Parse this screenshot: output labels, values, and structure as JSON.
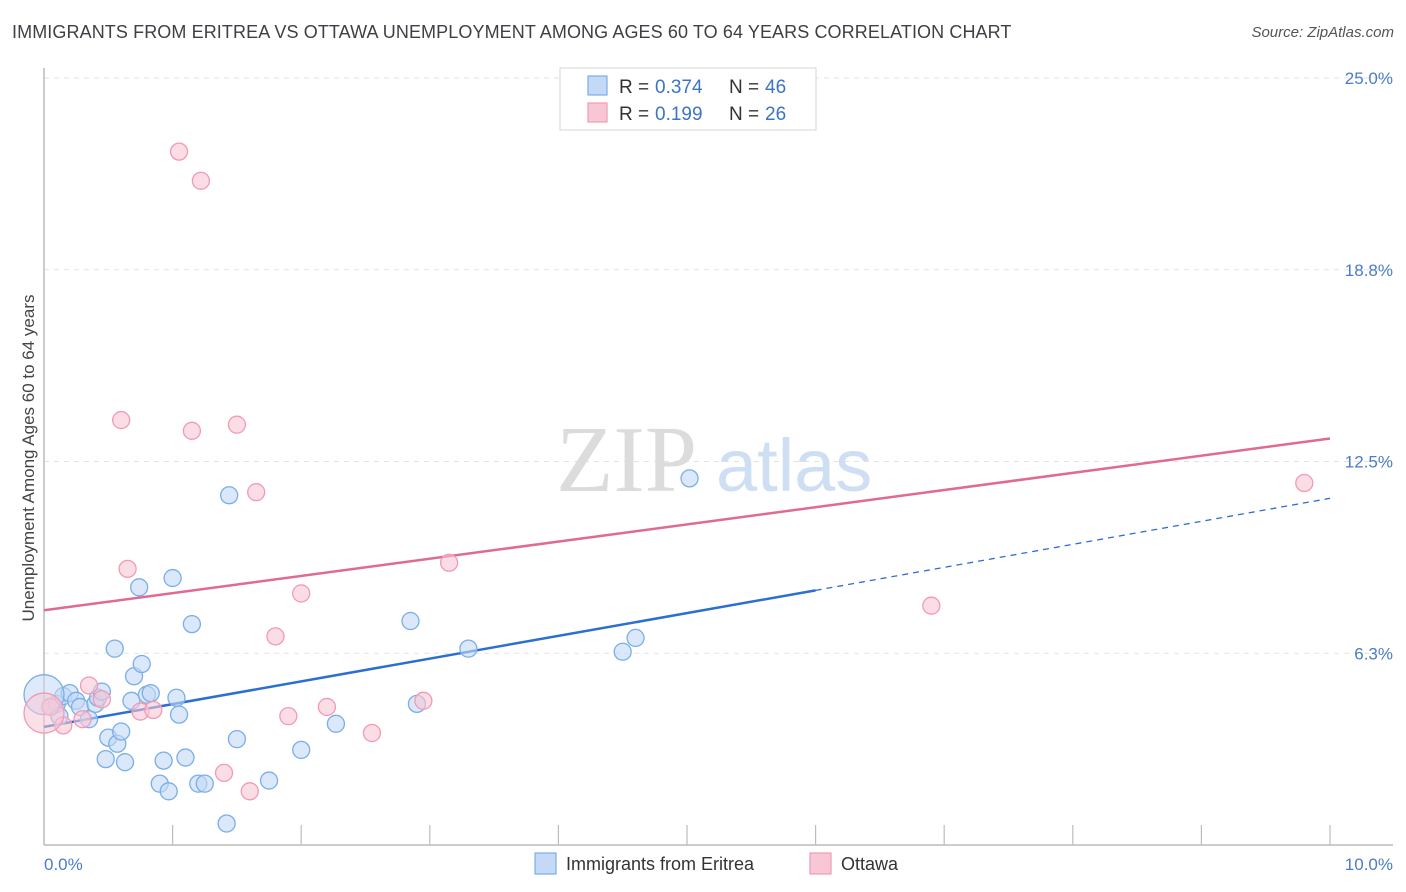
{
  "chart_data": {
    "type": "scatter",
    "title": "IMMIGRANTS FROM ERITREA VS OTTAWA UNEMPLOYMENT AMONG AGES 60 TO 64 YEARS CORRELATION CHART",
    "source": "Source: ZipAtlas.com",
    "xlabel": "",
    "ylabel": "Unemployment Among Ages 60 to 64 years",
    "xlim": [
      0,
      10
    ],
    "ylim": [
      0,
      25
    ],
    "y_ticks": [
      "6.3%",
      "12.5%",
      "18.8%",
      "25.0%"
    ],
    "y_tick_values": [
      6.25,
      12.5,
      18.75,
      25.0
    ],
    "x_ticks": [
      "0.0%",
      "10.0%"
    ],
    "x_tick_values": [
      0,
      10
    ],
    "watermark": {
      "zip": "ZIP",
      "atlas": "atlas"
    },
    "legend": [
      {
        "r_label": "R =",
        "r_value": "0.374",
        "n_label": "N =",
        "n_value": "46"
      },
      {
        "r_label": "R =",
        "r_value": "0.199",
        "n_label": "N =",
        "n_value": "26"
      }
    ],
    "series": [
      {
        "name": "Immigrants from Eritrea",
        "color": "#7aaee8",
        "fill": "#c3d9f5",
        "trend_color": "#2c6fd1",
        "trend": {
          "x0": 0.0,
          "y0": 3.85,
          "x1": 6.0,
          "y1": 8.3,
          "dash_x1": 10.0,
          "dash_y1": 11.3
        },
        "points": [
          [
            0.05,
            4.5
          ],
          [
            0.1,
            4.6
          ],
          [
            0.15,
            4.85
          ],
          [
            0.2,
            4.95
          ],
          [
            0.25,
            4.7
          ],
          [
            0.12,
            4.2
          ],
          [
            0.28,
            4.5
          ],
          [
            0.35,
            4.1
          ],
          [
            0.4,
            4.6
          ],
          [
            0.42,
            4.8
          ],
          [
            0.45,
            5.0
          ],
          [
            0.48,
            2.8
          ],
          [
            0.5,
            3.5
          ],
          [
            0.55,
            6.4
          ],
          [
            0.57,
            3.3
          ],
          [
            0.6,
            3.7
          ],
          [
            0.63,
            2.7
          ],
          [
            0.68,
            4.7
          ],
          [
            0.7,
            5.5
          ],
          [
            0.74,
            8.4
          ],
          [
            0.76,
            5.9
          ],
          [
            0.8,
            4.9
          ],
          [
            0.83,
            4.95
          ],
          [
            0.9,
            2.0
          ],
          [
            0.93,
            2.75
          ],
          [
            0.97,
            1.75
          ],
          [
            1.0,
            8.7
          ],
          [
            1.03,
            4.8
          ],
          [
            1.05,
            4.25
          ],
          [
            1.1,
            2.85
          ],
          [
            1.15,
            7.2
          ],
          [
            1.2,
            2.0
          ],
          [
            1.25,
            2.0
          ],
          [
            1.42,
            0.7
          ],
          [
            1.44,
            11.4
          ],
          [
            1.5,
            3.45
          ],
          [
            1.75,
            2.1
          ],
          [
            2.0,
            3.1
          ],
          [
            2.27,
            3.95
          ],
          [
            2.85,
            7.3
          ],
          [
            2.9,
            4.6
          ],
          [
            3.3,
            6.4
          ],
          [
            4.5,
            6.3
          ],
          [
            4.6,
            6.75
          ],
          [
            5.02,
            11.95
          ],
          [
            0.0,
            4.9
          ]
        ]
      },
      {
        "name": "Ottawa",
        "color": "#f29ab5",
        "fill": "#f8c7d6",
        "trend_color": "#e06a93",
        "trend": {
          "x0": 0.0,
          "y0": 7.65,
          "x1": 10.0,
          "y1": 13.25
        },
        "points": [
          [
            0.05,
            4.5
          ],
          [
            0.15,
            3.9
          ],
          [
            0.3,
            4.1
          ],
          [
            0.35,
            5.2
          ],
          [
            0.45,
            4.75
          ],
          [
            0.6,
            13.85
          ],
          [
            0.65,
            9.0
          ],
          [
            0.75,
            4.35
          ],
          [
            0.85,
            4.4
          ],
          [
            1.05,
            22.6
          ],
          [
            1.15,
            13.5
          ],
          [
            1.22,
            21.65
          ],
          [
            1.4,
            2.35
          ],
          [
            1.5,
            13.7
          ],
          [
            1.6,
            1.75
          ],
          [
            1.65,
            11.5
          ],
          [
            1.8,
            6.8
          ],
          [
            1.9,
            4.2
          ],
          [
            2.0,
            8.2
          ],
          [
            2.2,
            4.5
          ],
          [
            2.55,
            3.65
          ],
          [
            2.95,
            4.7
          ],
          [
            3.15,
            9.2
          ],
          [
            6.9,
            7.8
          ],
          [
            9.8,
            11.8
          ],
          [
            0.0,
            4.3
          ]
        ]
      }
    ]
  }
}
